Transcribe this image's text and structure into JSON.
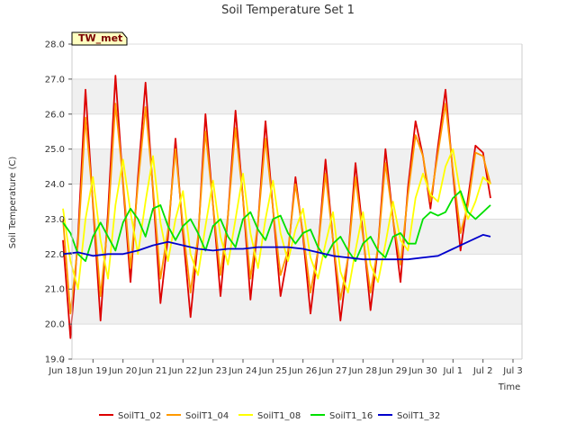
{
  "chart_data": {
    "type": "line",
    "title": "Soil Temperature Set 1",
    "xlabel": "Time",
    "ylabel": "Soil Temperature (C)",
    "badge": "TW_met",
    "ylim": [
      19.0,
      28.0
    ],
    "yticks": [
      "19.0",
      "20.0",
      "21.0",
      "22.0",
      "23.0",
      "24.0",
      "25.0",
      "26.0",
      "27.0",
      "28.0"
    ],
    "xlim": [
      "2024-06-18",
      "2024-07-03"
    ],
    "xticks": [
      "Jun 18",
      "Jun 19",
      "Jun 20",
      "Jun 21",
      "Jun 22",
      "Jun 23",
      "Jun 24",
      "Jun 25",
      "Jun 26",
      "Jun 27",
      "Jun 28",
      "Jun 29",
      "Jun 30",
      "Jul 1",
      "Jul 2",
      "Jul 3"
    ],
    "x_day_labels": [
      "18",
      "19",
      "20",
      "21",
      "22",
      "23",
      "24",
      "25",
      "26",
      "27",
      "28",
      "29",
      "30",
      "1",
      "2",
      "3"
    ],
    "grid": true,
    "legend_position": "bottom",
    "series": [
      {
        "name": "SoilT1_02",
        "color": "#dd0000",
        "x": [
          "2024-06-18T00:00",
          "2024-06-18T06:00",
          "2024-06-18T12:00",
          "2024-06-18T18:00",
          "2024-06-19T00:00",
          "2024-06-19T06:00",
          "2024-06-19T12:00",
          "2024-06-19T18:00",
          "2024-06-20T00:00",
          "2024-06-20T06:00",
          "2024-06-20T12:00",
          "2024-06-20T18:00",
          "2024-06-21T00:00",
          "2024-06-21T06:00",
          "2024-06-21T12:00",
          "2024-06-21T18:00",
          "2024-06-22T00:00",
          "2024-06-22T06:00",
          "2024-06-22T12:00",
          "2024-06-22T18:00",
          "2024-06-23T00:00",
          "2024-06-23T06:00",
          "2024-06-23T12:00",
          "2024-06-23T18:00",
          "2024-06-24T00:00",
          "2024-06-24T06:00",
          "2024-06-24T12:00",
          "2024-06-24T18:00",
          "2024-06-25T00:00",
          "2024-06-25T06:00",
          "2024-06-25T12:00",
          "2024-06-25T18:00",
          "2024-06-26T00:00",
          "2024-06-26T06:00",
          "2024-06-26T12:00",
          "2024-06-26T18:00",
          "2024-06-27T00:00",
          "2024-06-27T06:00",
          "2024-06-27T12:00",
          "2024-06-27T18:00",
          "2024-06-28T00:00",
          "2024-06-28T06:00",
          "2024-06-28T12:00",
          "2024-06-28T18:00",
          "2024-06-29T00:00",
          "2024-06-29T06:00",
          "2024-06-29T12:00",
          "2024-06-29T18:00",
          "2024-06-30T00:00",
          "2024-06-30T06:00",
          "2024-06-30T12:00",
          "2024-06-30T18:00",
          "2024-07-01T00:00",
          "2024-07-01T06:00",
          "2024-07-01T12:00",
          "2024-07-01T18:00",
          "2024-07-02T00:00",
          "2024-07-02T06:00"
        ],
        "y": [
          22.4,
          19.6,
          22.5,
          26.7,
          23.4,
          20.1,
          23.2,
          27.1,
          24.0,
          21.2,
          24.2,
          26.9,
          23.8,
          20.6,
          22.5,
          25.3,
          22.6,
          20.2,
          22.4,
          26.0,
          23.4,
          20.8,
          23.1,
          26.1,
          23.6,
          20.7,
          22.9,
          25.8,
          23.3,
          20.8,
          22.0,
          24.2,
          22.5,
          20.3,
          22.1,
          24.7,
          22.4,
          20.1,
          21.9,
          24.6,
          22.6,
          20.4,
          22.2,
          25.0,
          23.0,
          21.2,
          23.9,
          25.8,
          24.8,
          23.3,
          25.1,
          26.7,
          24.3,
          22.1,
          23.6,
          25.1,
          24.9,
          23.6
        ]
      },
      {
        "name": "SoilT1_04",
        "color": "#ff9900",
        "x": [
          "2024-06-18T00:00",
          "2024-06-18T06:00",
          "2024-06-18T12:00",
          "2024-06-18T18:00",
          "2024-06-19T00:00",
          "2024-06-19T06:00",
          "2024-06-19T12:00",
          "2024-06-19T18:00",
          "2024-06-20T00:00",
          "2024-06-20T06:00",
          "2024-06-20T12:00",
          "2024-06-20T18:00",
          "2024-06-21T00:00",
          "2024-06-21T06:00",
          "2024-06-21T12:00",
          "2024-06-21T18:00",
          "2024-06-22T00:00",
          "2024-06-22T06:00",
          "2024-06-22T12:00",
          "2024-06-22T18:00",
          "2024-06-23T00:00",
          "2024-06-23T06:00",
          "2024-06-23T12:00",
          "2024-06-23T18:00",
          "2024-06-24T00:00",
          "2024-06-24T06:00",
          "2024-06-24T12:00",
          "2024-06-24T18:00",
          "2024-06-25T00:00",
          "2024-06-25T06:00",
          "2024-06-25T12:00",
          "2024-06-25T18:00",
          "2024-06-26T00:00",
          "2024-06-26T06:00",
          "2024-06-26T12:00",
          "2024-06-26T18:00",
          "2024-06-27T00:00",
          "2024-06-27T06:00",
          "2024-06-27T12:00",
          "2024-06-27T18:00",
          "2024-06-28T00:00",
          "2024-06-28T06:00",
          "2024-06-28T12:00",
          "2024-06-28T18:00",
          "2024-06-29T00:00",
          "2024-06-29T06:00",
          "2024-06-29T12:00",
          "2024-06-29T18:00",
          "2024-06-30T00:00",
          "2024-06-30T06:00",
          "2024-06-30T12:00",
          "2024-06-30T18:00",
          "2024-07-01T00:00",
          "2024-07-01T06:00",
          "2024-07-01T12:00",
          "2024-07-01T18:00",
          "2024-07-02T00:00",
          "2024-07-02T06:00"
        ],
        "y": [
          23.0,
          20.3,
          22.3,
          25.9,
          23.5,
          20.8,
          22.9,
          26.3,
          24.1,
          21.6,
          24.0,
          26.2,
          23.9,
          21.3,
          22.7,
          25.0,
          22.8,
          20.9,
          22.5,
          25.5,
          23.4,
          21.4,
          23.1,
          25.6,
          23.6,
          21.3,
          22.9,
          25.3,
          23.3,
          21.4,
          22.1,
          24.0,
          22.6,
          20.9,
          22.1,
          24.3,
          22.4,
          20.7,
          21.9,
          24.2,
          22.5,
          20.9,
          22.2,
          24.6,
          23.0,
          21.7,
          23.7,
          25.4,
          24.8,
          23.5,
          24.9,
          26.3,
          24.4,
          22.6,
          23.4,
          24.9,
          24.8,
          24.0
        ]
      },
      {
        "name": "SoilT1_08",
        "color": "#ffff00",
        "x": [
          "2024-06-18T00:00",
          "2024-06-18T06:00",
          "2024-06-18T12:00",
          "2024-06-18T18:00",
          "2024-06-19T00:00",
          "2024-06-19T06:00",
          "2024-06-19T12:00",
          "2024-06-19T18:00",
          "2024-06-20T00:00",
          "2024-06-20T06:00",
          "2024-06-20T12:00",
          "2024-06-20T18:00",
          "2024-06-21T00:00",
          "2024-06-21T06:00",
          "2024-06-21T12:00",
          "2024-06-21T18:00",
          "2024-06-22T00:00",
          "2024-06-22T06:00",
          "2024-06-22T12:00",
          "2024-06-22T18:00",
          "2024-06-23T00:00",
          "2024-06-23T06:00",
          "2024-06-23T12:00",
          "2024-06-23T18:00",
          "2024-06-24T00:00",
          "2024-06-24T06:00",
          "2024-06-24T12:00",
          "2024-06-24T18:00",
          "2024-06-25T00:00",
          "2024-06-25T06:00",
          "2024-06-25T12:00",
          "2024-06-25T18:00",
          "2024-06-26T00:00",
          "2024-06-26T06:00",
          "2024-06-26T12:00",
          "2024-06-26T18:00",
          "2024-06-27T00:00",
          "2024-06-27T06:00",
          "2024-06-27T12:00",
          "2024-06-27T18:00",
          "2024-06-28T00:00",
          "2024-06-28T06:00",
          "2024-06-28T12:00",
          "2024-06-28T18:00",
          "2024-06-29T00:00",
          "2024-06-29T06:00",
          "2024-06-29T12:00",
          "2024-06-29T18:00",
          "2024-06-30T00:00",
          "2024-06-30T06:00",
          "2024-06-30T12:00",
          "2024-06-30T18:00",
          "2024-07-01T00:00",
          "2024-07-01T06:00",
          "2024-07-01T12:00",
          "2024-07-01T18:00",
          "2024-07-02T00:00",
          "2024-07-02T06:00"
        ],
        "y": [
          23.3,
          21.8,
          21.0,
          23.0,
          24.2,
          22.4,
          21.3,
          23.4,
          24.7,
          23.2,
          22.0,
          23.5,
          24.8,
          22.9,
          21.8,
          23.0,
          23.8,
          22.0,
          21.4,
          22.8,
          24.1,
          22.5,
          21.7,
          23.0,
          24.3,
          22.6,
          21.6,
          23.0,
          24.1,
          22.6,
          21.8,
          22.7,
          23.3,
          21.9,
          21.3,
          22.3,
          23.2,
          21.5,
          20.9,
          22.1,
          23.2,
          21.7,
          21.2,
          22.3,
          23.5,
          22.4,
          22.1,
          23.6,
          24.3,
          23.7,
          23.5,
          24.5,
          25.0,
          23.7,
          23.0,
          23.5,
          24.2,
          24.0
        ]
      },
      {
        "name": "SoilT1_16",
        "color": "#00e000",
        "x": [
          "2024-06-18T00:00",
          "2024-06-18T06:00",
          "2024-06-18T12:00",
          "2024-06-18T18:00",
          "2024-06-19T00:00",
          "2024-06-19T06:00",
          "2024-06-19T12:00",
          "2024-06-19T18:00",
          "2024-06-20T00:00",
          "2024-06-20T06:00",
          "2024-06-20T12:00",
          "2024-06-20T18:00",
          "2024-06-21T00:00",
          "2024-06-21T06:00",
          "2024-06-21T12:00",
          "2024-06-21T18:00",
          "2024-06-22T00:00",
          "2024-06-22T06:00",
          "2024-06-22T12:00",
          "2024-06-22T18:00",
          "2024-06-23T00:00",
          "2024-06-23T06:00",
          "2024-06-23T12:00",
          "2024-06-23T18:00",
          "2024-06-24T00:00",
          "2024-06-24T06:00",
          "2024-06-24T12:00",
          "2024-06-24T18:00",
          "2024-06-25T00:00",
          "2024-06-25T06:00",
          "2024-06-25T12:00",
          "2024-06-25T18:00",
          "2024-06-26T00:00",
          "2024-06-26T06:00",
          "2024-06-26T12:00",
          "2024-06-26T18:00",
          "2024-06-27T00:00",
          "2024-06-27T06:00",
          "2024-06-27T12:00",
          "2024-06-27T18:00",
          "2024-06-28T00:00",
          "2024-06-28T06:00",
          "2024-06-28T12:00",
          "2024-06-28T18:00",
          "2024-06-29T00:00",
          "2024-06-29T06:00",
          "2024-06-29T12:00",
          "2024-06-29T18:00",
          "2024-06-30T00:00",
          "2024-06-30T06:00",
          "2024-06-30T12:00",
          "2024-06-30T18:00",
          "2024-07-01T00:00",
          "2024-07-01T06:00",
          "2024-07-01T12:00",
          "2024-07-01T18:00",
          "2024-07-02T00:00",
          "2024-07-02T06:00"
        ],
        "y": [
          22.9,
          22.6,
          22.0,
          21.8,
          22.5,
          22.9,
          22.5,
          22.1,
          22.9,
          23.3,
          23.0,
          22.5,
          23.3,
          23.4,
          22.8,
          22.4,
          22.8,
          23.0,
          22.6,
          22.1,
          22.8,
          23.0,
          22.5,
          22.2,
          23.0,
          23.2,
          22.7,
          22.4,
          23.0,
          23.1,
          22.6,
          22.3,
          22.6,
          22.7,
          22.2,
          21.9,
          22.3,
          22.5,
          22.1,
          21.8,
          22.3,
          22.5,
          22.1,
          21.9,
          22.5,
          22.6,
          22.3,
          22.3,
          23.0,
          23.2,
          23.1,
          23.2,
          23.6,
          23.8,
          23.2,
          23.0,
          23.2,
          23.4
        ]
      },
      {
        "name": "SoilT1_32",
        "color": "#0000cc",
        "x": [
          "2024-06-18T00:00",
          "2024-06-18T12:00",
          "2024-06-19T00:00",
          "2024-06-19T12:00",
          "2024-06-20T00:00",
          "2024-06-20T12:00",
          "2024-06-21T00:00",
          "2024-06-21T12:00",
          "2024-06-22T00:00",
          "2024-06-22T12:00",
          "2024-06-23T00:00",
          "2024-06-23T12:00",
          "2024-06-24T00:00",
          "2024-06-24T12:00",
          "2024-06-25T00:00",
          "2024-06-25T12:00",
          "2024-06-26T00:00",
          "2024-06-26T12:00",
          "2024-06-27T00:00",
          "2024-06-27T12:00",
          "2024-06-28T00:00",
          "2024-06-28T12:00",
          "2024-06-29T00:00",
          "2024-06-29T12:00",
          "2024-06-30T00:00",
          "2024-06-30T12:00",
          "2024-07-01T00:00",
          "2024-07-01T12:00",
          "2024-07-02T00:00",
          "2024-07-02T06:00"
        ],
        "y": [
          22.0,
          22.05,
          21.95,
          22.0,
          22.0,
          22.1,
          22.25,
          22.35,
          22.25,
          22.15,
          22.1,
          22.15,
          22.15,
          22.2,
          22.2,
          22.2,
          22.15,
          22.05,
          21.95,
          21.9,
          21.85,
          21.85,
          21.85,
          21.85,
          21.9,
          21.95,
          22.15,
          22.35,
          22.55,
          22.5
        ]
      }
    ]
  }
}
